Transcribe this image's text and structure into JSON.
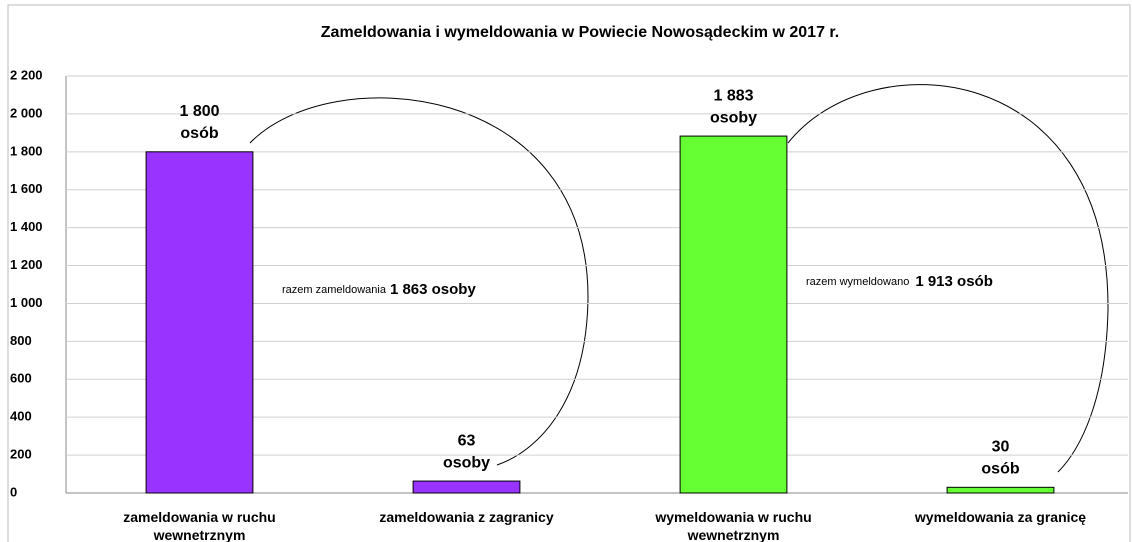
{
  "chart_data": {
    "type": "bar",
    "title": "Zameldowania i wymeldowania w Powiecie Nowosądeckim w 2017 r.",
    "categories": [
      "zameldowania w ruchu wewnetrznym",
      "zameldowania z zagranicy",
      "wymeldowania w ruchu wewnetrznym",
      "wymeldowania za granicę"
    ],
    "values": [
      1800,
      63,
      1883,
      30
    ],
    "value_labels": [
      [
        "1 800",
        "osób"
      ],
      [
        "63",
        "osoby"
      ],
      [
        "1 883",
        "osoby"
      ],
      [
        "30",
        "osób"
      ]
    ],
    "colors": [
      "#9933ff",
      "#9933ff",
      "#66ff33",
      "#66ff33"
    ],
    "annotations": [
      {
        "text": "razem zameldowania",
        "value_label": "1 863 osoby"
      },
      {
        "text": "razem wymeldowano",
        "value_label": "1 913 osób"
      }
    ],
    "ylim": [
      0,
      2200
    ],
    "yticks": [
      0,
      200,
      400,
      600,
      800,
      {
        "value": 1000,
        "label": "1 000"
      },
      {
        "value": 1200,
        "label": "1 200"
      },
      {
        "value": 1400,
        "label": "1 400"
      },
      {
        "value": 1600,
        "label": "1 600"
      },
      {
        "value": 1800,
        "label": "1 800"
      },
      {
        "value": 2000,
        "label": "2 000"
      },
      {
        "value": 2200,
        "label": "2 200"
      }
    ],
    "grid": true
  }
}
